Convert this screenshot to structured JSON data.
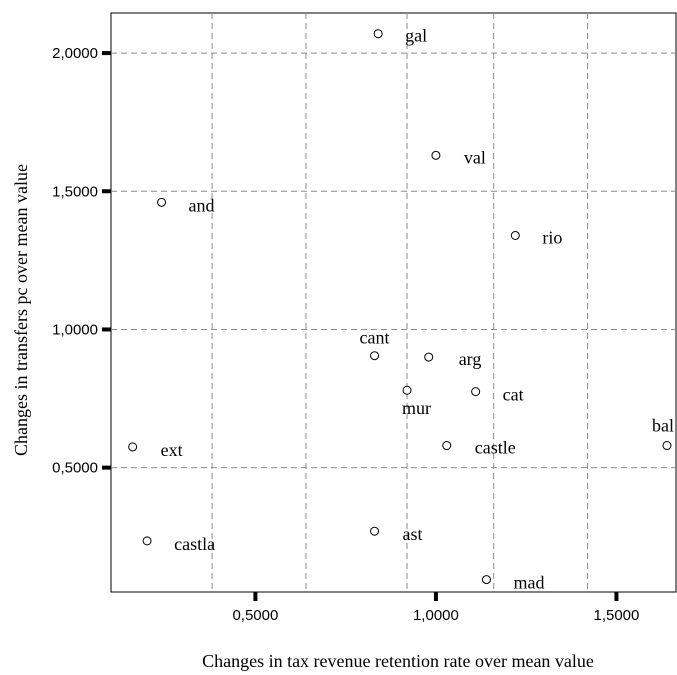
{
  "chart_data": {
    "type": "scatter",
    "title": "",
    "xlabel": "Changes in tax revenue retention rate over mean value",
    "ylabel": "Changes in transfers pc over mean value",
    "xlim": [
      0.1,
      1.665
    ],
    "ylim": [
      0.05,
      2.145
    ],
    "xticks": [
      {
        "value": 0.5,
        "label": "0,5000"
      },
      {
        "value": 1.0,
        "label": "1,0000"
      },
      {
        "value": 1.5,
        "label": "1,5000"
      }
    ],
    "yticks": [
      {
        "value": 0.5,
        "label": "0,5000"
      },
      {
        "value": 1.0,
        "label": "1,0000"
      },
      {
        "value": 1.5,
        "label": "1,5000"
      },
      {
        "value": 2.0,
        "label": "2,0000"
      }
    ],
    "x_gridlines": [
      0.38,
      0.64,
      0.92,
      1.16,
      1.42
    ],
    "y_gridlines": [
      0.5,
      1.0,
      1.5,
      2.0
    ],
    "grid": true,
    "points": [
      {
        "name": "gal",
        "x": 0.84,
        "y": 2.07
      },
      {
        "name": "val",
        "x": 1.0,
        "y": 1.63
      },
      {
        "name": "and",
        "x": 0.24,
        "y": 1.46
      },
      {
        "name": "rio",
        "x": 1.22,
        "y": 1.34
      },
      {
        "name": "cant",
        "x": 0.83,
        "y": 0.905
      },
      {
        "name": "arg",
        "x": 0.98,
        "y": 0.9
      },
      {
        "name": "mur",
        "x": 0.92,
        "y": 0.78
      },
      {
        "name": "cat",
        "x": 1.11,
        "y": 0.775
      },
      {
        "name": "ext",
        "x": 0.16,
        "y": 0.575
      },
      {
        "name": "castle",
        "x": 1.03,
        "y": 0.58
      },
      {
        "name": "bal",
        "x": 1.64,
        "y": 0.58
      },
      {
        "name": "ast",
        "x": 0.83,
        "y": 0.27
      },
      {
        "name": "castla",
        "x": 0.2,
        "y": 0.235
      },
      {
        "name": "mad",
        "x": 1.14,
        "y": 0.095
      }
    ]
  }
}
